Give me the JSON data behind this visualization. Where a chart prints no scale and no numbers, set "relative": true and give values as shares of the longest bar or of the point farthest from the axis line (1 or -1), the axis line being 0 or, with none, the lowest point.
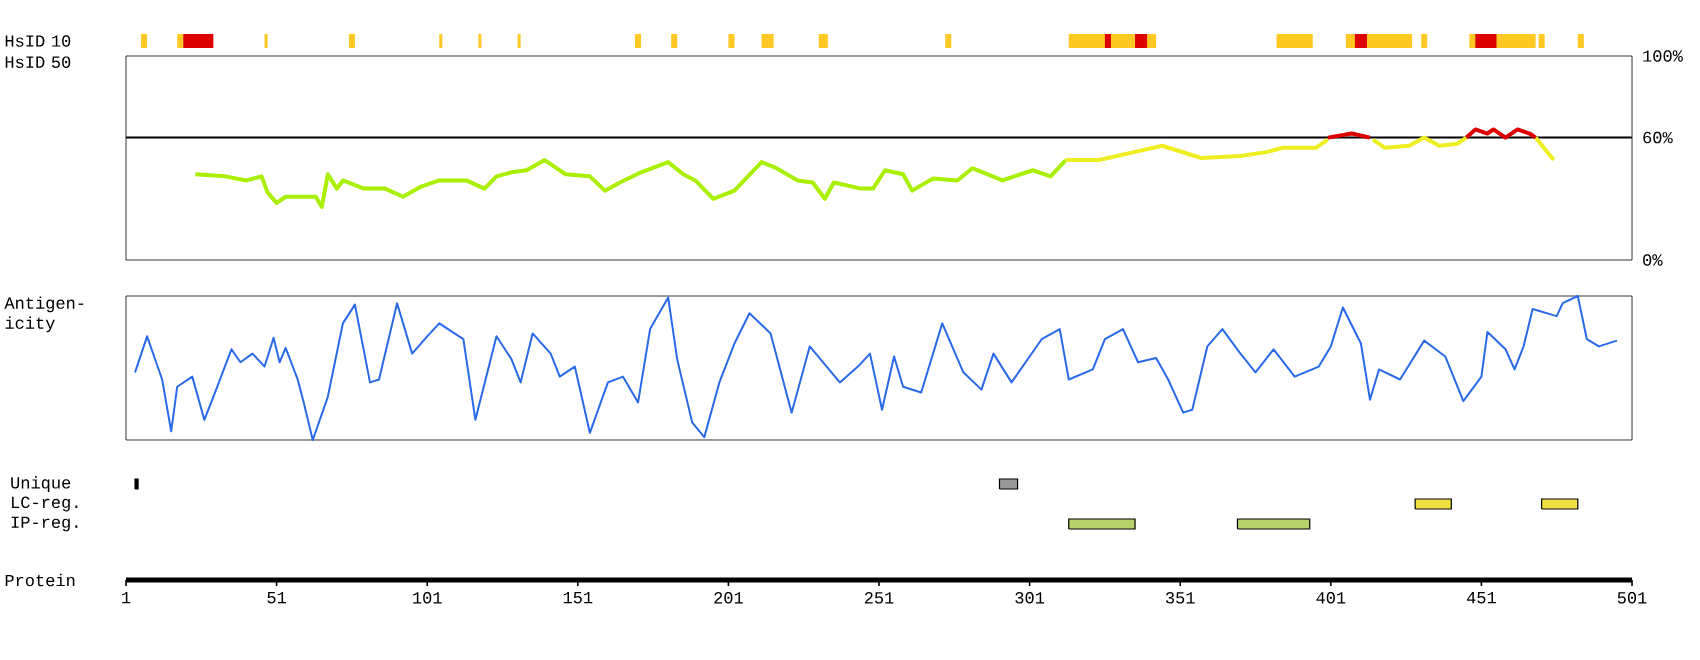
{
  "chart_data": [
    {
      "type": "bar",
      "orientation": "horizontal",
      "ylabel": "HsID 10",
      "categories": [
        null
      ],
      "xlim": [
        1,
        501
      ],
      "tick_labels": false,
      "series": [
        {
          "color": "#ffc822",
          "values": [
            2
          ],
          "base": [
            6
          ]
        },
        {
          "color": "#ffc822",
          "values": [
            2
          ],
          "base": [
            18
          ]
        },
        {
          "color": "#ffc822",
          "values": [
            1
          ],
          "base": [
            47
          ]
        },
        {
          "color": "#ffc822",
          "values": [
            2
          ],
          "base": [
            75
          ]
        },
        {
          "color": "#ffc822",
          "values": [
            1
          ],
          "base": [
            105
          ]
        },
        {
          "color": "#ffc822",
          "values": [
            1
          ],
          "base": [
            118
          ]
        },
        {
          "color": "#ffc822",
          "values": [
            1
          ],
          "base": [
            131
          ]
        },
        {
          "color": "#ffc822",
          "values": [
            2
          ],
          "base": [
            170
          ]
        },
        {
          "color": "#ffc822",
          "values": [
            2
          ],
          "base": [
            182
          ]
        },
        {
          "color": "#ffc822",
          "values": [
            2
          ],
          "base": [
            201
          ]
        },
        {
          "color": "#ffc822",
          "values": [
            4
          ],
          "base": [
            212
          ]
        },
        {
          "color": "#ffc822",
          "values": [
            3
          ],
          "base": [
            231
          ]
        },
        {
          "color": "#ffc822",
          "values": [
            2
          ],
          "base": [
            273
          ]
        },
        {
          "color": "#ffc822",
          "values": [
            29
          ],
          "base": [
            314
          ]
        },
        {
          "color": "#ffc822",
          "values": [
            12
          ],
          "base": [
            383
          ]
        },
        {
          "color": "#ffc822",
          "values": [
            22
          ],
          "base": [
            406
          ]
        },
        {
          "color": "#ffc822",
          "values": [
            2
          ],
          "base": [
            431
          ]
        },
        {
          "color": "#ffc822",
          "values": [
            22
          ],
          "base": [
            447
          ]
        },
        {
          "color": "#ffc822",
          "values": [
            2
          ],
          "base": [
            470
          ]
        },
        {
          "color": "#ffc822",
          "values": [
            2
          ],
          "base": [
            483
          ]
        },
        {
          "color": "#dd0000",
          "values": [
            10
          ],
          "base": [
            20
          ]
        },
        {
          "color": "#dd0000",
          "values": [
            2
          ],
          "base": [
            326
          ]
        },
        {
          "color": "#dd0000",
          "values": [
            4
          ],
          "base": [
            336
          ]
        },
        {
          "color": "#dd0000",
          "values": [
            4
          ],
          "base": [
            409
          ]
        },
        {
          "color": "#dd0000",
          "values": [
            7
          ],
          "base": [
            449
          ]
        }
      ]
    },
    {
      "type": "line",
      "ylabel": "HsID 50",
      "xlim": [
        1,
        501
      ],
      "ylim": [
        0,
        100
      ],
      "yticks": [
        {
          "value": 0,
          "label": "0%"
        },
        {
          "value": 60,
          "label": "60%"
        },
        {
          "value": 100,
          "label": "100%"
        }
      ],
      "tick_labels": "y",
      "ref_lines": [
        {
          "axis": "y",
          "value": 60,
          "color": "#000000"
        }
      ],
      "series": [
        {
          "color": "#aaee00",
          "x": [
            24,
            34,
            41,
            46,
            48,
            51,
            54,
            64,
            66,
            68,
            71,
            73,
            80,
            87,
            93,
            99,
            105,
            114,
            120,
            124,
            129,
            134,
            140,
            147,
            155,
            160,
            165,
            172,
            181,
            186,
            190,
            196,
            203,
            212,
            217,
            224,
            229,
            233,
            236,
            245,
            249,
            253,
            259,
            262,
            269,
            277,
            282,
            292,
            302,
            308,
            313
          ],
          "values": [
            42,
            41,
            39,
            41,
            33,
            28,
            31,
            31,
            26,
            42,
            35,
            39,
            35,
            35,
            31,
            36,
            39,
            39,
            35,
            41,
            43,
            44,
            49,
            42,
            41,
            34,
            38,
            43,
            48,
            42,
            39,
            30,
            34,
            48,
            45,
            39,
            38,
            30,
            38,
            35,
            35,
            44,
            42,
            34,
            40,
            39,
            45,
            39,
            44,
            41,
            49
          ]
        },
        {
          "color": "#eeee22",
          "x": [
            313,
            324,
            336,
            345,
            358,
            371,
            380,
            385,
            396,
            400,
            401,
            415,
            419,
            427,
            432,
            437,
            443,
            446,
            452,
            469,
            475
          ],
          "values": [
            49,
            49,
            53,
            56,
            50,
            51,
            53,
            55,
            55,
            59,
            null,
            59,
            55,
            56,
            60,
            56,
            57,
            60,
            null,
            60,
            49
          ]
        },
        {
          "color": "#dd0000",
          "x": [
            400,
            408,
            414,
            415,
            446,
            449,
            453,
            455,
            459,
            463,
            467,
            469
          ],
          "values": [
            60,
            62,
            60,
            null,
            60,
            64,
            62,
            64,
            60,
            64,
            62,
            60
          ]
        }
      ]
    },
    {
      "type": "line",
      "ylabel": "Antigen-icity",
      "xlim": [
        1,
        501
      ],
      "relative": true,
      "tick_labels": false,
      "series": [
        {
          "color": "#2a6ae8",
          "x": [
            4,
            8,
            11,
            13,
            16,
            18,
            23,
            27,
            30,
            36,
            39,
            43,
            47,
            50,
            52,
            54,
            58,
            60,
            63,
            68,
            73,
            77,
            82,
            85,
            91,
            96,
            101,
            105,
            113,
            117,
            124,
            129,
            132,
            136,
            142,
            145,
            150,
            155,
            161,
            166,
            171,
            175,
            181,
            184,
            189,
            193,
            198,
            203,
            208,
            215,
            222,
            228,
            238,
            244,
            248,
            252,
            256,
            259,
            265,
            272,
            279,
            285,
            289,
            295,
            305,
            311,
            314,
            322,
            326,
            332,
            337,
            343,
            347,
            352,
            355,
            360,
            365,
            371,
            376,
            382,
            389,
            397,
            401,
            405,
            411,
            414,
            417,
            424,
            432,
            439,
            445,
            451,
            453,
            459,
            462,
            465,
            468,
            476,
            478,
            483,
            486,
            490,
            496
          ],
          "values": [
            0.47,
            0.72,
            0.54,
            0.42,
            0.06,
            0.37,
            0.44,
            0.14,
            0.3,
            0.63,
            0.54,
            0.6,
            0.51,
            0.71,
            0.54,
            0.64,
            0.42,
            0.26,
            0.0,
            0.3,
            0.81,
            0.94,
            0.4,
            0.42,
            0.95,
            0.6,
            0.72,
            0.81,
            0.7,
            0.14,
            0.72,
            0.56,
            0.4,
            0.74,
            0.6,
            0.44,
            0.51,
            0.05,
            0.4,
            0.44,
            0.26,
            0.77,
            0.99,
            0.56,
            0.12,
            0.02,
            0.4,
            0.67,
            0.88,
            0.74,
            0.19,
            0.65,
            0.4,
            0.51,
            0.6,
            0.21,
            0.58,
            0.37,
            0.33,
            0.81,
            0.47,
            0.35,
            0.6,
            0.4,
            0.7,
            0.77,
            0.42,
            0.49,
            0.7,
            0.77,
            0.54,
            0.57,
            0.42,
            0.19,
            0.21,
            0.65,
            0.77,
            0.6,
            0.47,
            0.63,
            0.44,
            0.51,
            0.65,
            0.92,
            0.67,
            0.28,
            0.49,
            0.42,
            0.69,
            0.58,
            0.27,
            0.44,
            0.75,
            0.63,
            0.49,
            0.65,
            0.91,
            0.86,
            0.95,
            1.0,
            0.7,
            0.65,
            0.69
          ]
        }
      ]
    },
    {
      "type": "bar",
      "orientation": "horizontal",
      "xlabel": "Protein",
      "categories": [
        "Unique",
        "LC-reg.",
        "IP-reg."
      ],
      "xlim": [
        1,
        501
      ],
      "xticks": [
        1,
        51,
        101,
        151,
        201,
        251,
        301,
        351,
        401,
        451,
        501
      ],
      "series": [
        {
          "color": "#000000",
          "values": [
            1,
            null,
            null
          ],
          "base": [
            4,
            null,
            null
          ]
        },
        {
          "color": "#999999",
          "values": [
            6,
            null,
            null
          ],
          "base": [
            291,
            null,
            null
          ]
        },
        {
          "color": "#f0e040",
          "values": [
            null,
            12,
            null
          ],
          "base": [
            null,
            429,
            null
          ]
        },
        {
          "color": "#f0e040",
          "values": [
            null,
            12,
            null
          ],
          "base": [
            null,
            471,
            null
          ]
        },
        {
          "color": "#b5d36a",
          "values": [
            null,
            null,
            22
          ],
          "base": [
            null,
            null,
            314
          ]
        },
        {
          "color": "#b5d36a",
          "values": [
            null,
            null,
            24
          ],
          "base": [
            null,
            null,
            370
          ]
        }
      ]
    }
  ]
}
